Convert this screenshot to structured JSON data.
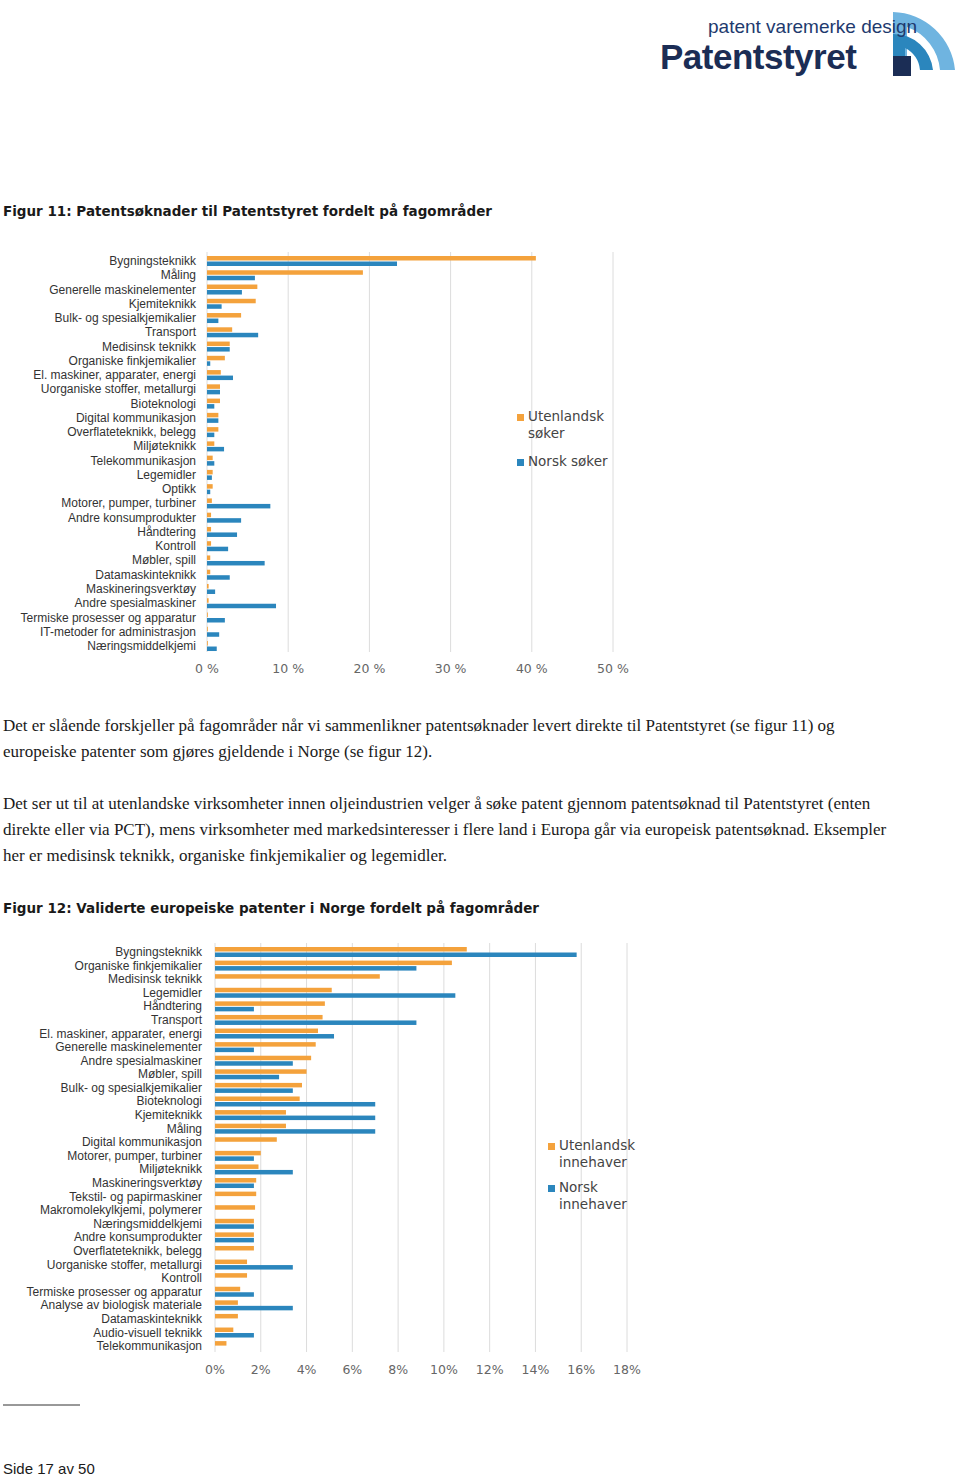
{
  "header": {
    "tagline": "patent varemerke design",
    "name": "Patentstyret"
  },
  "chart_data": [
    {
      "type": "bar",
      "title": "Figur 11: Patentsøknader til Patentstyret fordelt på fagområder",
      "orientation": "horizontal",
      "categories": [
        "Bygningsteknikk",
        "Måling",
        "Generelle maskinelementer",
        "Kjemiteknikk",
        "Bulk- og spesialkjemikalier",
        "Transport",
        "Medisinsk teknikk",
        "Organiske finkjemikalier",
        "El. maskiner, apparater, energi",
        "Uorganiske stoffer, metallurgi",
        "Bioteknologi",
        "Digital kommunikasjon",
        "Overflateteknikk, belegg",
        "Miljøteknikk",
        "Telekommunikasjon",
        "Legemidler",
        "Optikk",
        "Motorer, pumper, turbiner",
        "Andre konsumprodukter",
        "Håndtering",
        "Kontroll",
        "Møbler, spill",
        "Datamaskinteknikk",
        "Maskineringsverktøy",
        "Andre spesialmaskiner",
        "Termiske prosesser og apparatur",
        "IT-metoder for administrasjon",
        "Næringsmiddelkjemi"
      ],
      "series": [
        {
          "name": "Utenlandsk søker",
          "color": "#f4a23c",
          "values": [
            40.5,
            19.2,
            6.2,
            6.0,
            4.2,
            3.1,
            2.8,
            2.2,
            1.7,
            1.6,
            1.6,
            1.4,
            1.4,
            0.9,
            0.7,
            0.7,
            0.7,
            0.6,
            0.5,
            0.5,
            0.5,
            0.4,
            0.4,
            0.2,
            0.2,
            0.1,
            0.1,
            0.1
          ]
        },
        {
          "name": "Norsk søker",
          "color": "#2b86bd",
          "values": [
            23.4,
            5.9,
            4.3,
            1.8,
            1.4,
            6.3,
            2.8,
            0.4,
            3.2,
            1.6,
            0.9,
            1.4,
            0.9,
            2.1,
            0.9,
            0.6,
            0.4,
            7.8,
            4.2,
            3.7,
            2.6,
            7.1,
            2.8,
            1.0,
            8.5,
            2.2,
            1.5,
            1.2
          ]
        }
      ],
      "xlim": [
        0,
        50
      ],
      "xticks": [
        {
          "value": 0,
          "label": "0 %"
        },
        {
          "value": 10,
          "label": "10 %"
        },
        {
          "value": 20,
          "label": "20 %"
        },
        {
          "value": 30,
          "label": "30 %"
        },
        {
          "value": 40,
          "label": "40 %"
        },
        {
          "value": 50,
          "label": "50 %"
        }
      ],
      "grid": true,
      "legend": "right"
    },
    {
      "type": "bar",
      "title": "Figur 12: Validerte europeiske patenter i Norge fordelt på fagområder",
      "orientation": "horizontal",
      "categories": [
        "Bygningsteknikk",
        "Organiske finkjemikalier",
        "Medisinsk teknikk",
        "Legemidler",
        "Håndtering",
        "Transport",
        "El. maskiner, apparater, energi",
        "Generelle maskinelementer",
        "Andre spesialmaskiner",
        "Møbler, spill",
        "Bulk- og spesialkjemikalier",
        "Bioteknologi",
        "Kjemiteknikk",
        "Måling",
        "Digital kommunikasjon",
        "Motorer, pumper, turbiner",
        "Miljøteknikk",
        "Maskineringsverktøy",
        "Tekstil- og papirmaskiner",
        "Makromolekylkjemi, polymerer",
        "Næringsmiddelkjemi",
        "Andre konsumprodukter",
        "Overflateteknikk, belegg",
        "Uorganiske stoffer, metallurgi",
        "Kontroll",
        "Termiske prosesser og apparatur",
        "Analyse av biologisk materiale",
        "Datamaskinteknikk",
        "Audio-visuell teknikk",
        "Telekommunikasjon"
      ],
      "series": [
        {
          "name": "Utenlandsk innehaver",
          "color": "#f4a23c",
          "values": [
            11.0,
            10.35,
            7.2,
            5.1,
            4.8,
            4.7,
            4.5,
            4.4,
            4.2,
            4.0,
            3.8,
            3.7,
            3.1,
            3.1,
            2.7,
            2.0,
            1.9,
            1.8,
            1.8,
            1.75,
            1.7,
            1.7,
            1.7,
            1.4,
            1.4,
            1.1,
            1.0,
            1.0,
            0.8,
            0.5
          ]
        },
        {
          "name": "Norsk innehaver",
          "color": "#2b86bd",
          "values": [
            15.8,
            8.8,
            0,
            10.5,
            1.7,
            8.8,
            5.2,
            1.7,
            3.4,
            2.8,
            3.4,
            7.0,
            7.0,
            7.0,
            0,
            1.7,
            3.4,
            1.7,
            0,
            0,
            1.7,
            1.7,
            0,
            3.4,
            0,
            1.7,
            3.4,
            0,
            1.7,
            0
          ]
        }
      ],
      "xlim": [
        0,
        18
      ],
      "xticks": [
        {
          "value": 0,
          "label": "0%"
        },
        {
          "value": 2,
          "label": "2%"
        },
        {
          "value": 4,
          "label": "4%"
        },
        {
          "value": 6,
          "label": "6%"
        },
        {
          "value": 8,
          "label": "8%"
        },
        {
          "value": 10,
          "label": "10%"
        },
        {
          "value": 12,
          "label": "12%"
        },
        {
          "value": 14,
          "label": "14%"
        },
        {
          "value": 16,
          "label": "16%"
        },
        {
          "value": 18,
          "label": "18%"
        }
      ],
      "grid": true,
      "legend": "right"
    }
  ],
  "paragraphs": [
    "Det er slående forskjeller på fagområder når vi sammenlikner patentsøknader levert direkte til Patentstyret (se figur 11) og europeiske patenter som gjøres gjeldende i Norge (se figur 12).",
    "Det ser ut til at utenlandske virksomheter innen oljeindustrien velger å søke patent gjennom patentsøknad til Patentstyret (enten direkte eller via PCT), mens virksomheter med markedsinteresser i flere land i Europa går via europeisk patentsøknad. Eksempler her er medisinsk teknikk, organiske finkjemikalier og legemidler."
  ],
  "footer": {
    "page": "Side 17 av 50"
  }
}
